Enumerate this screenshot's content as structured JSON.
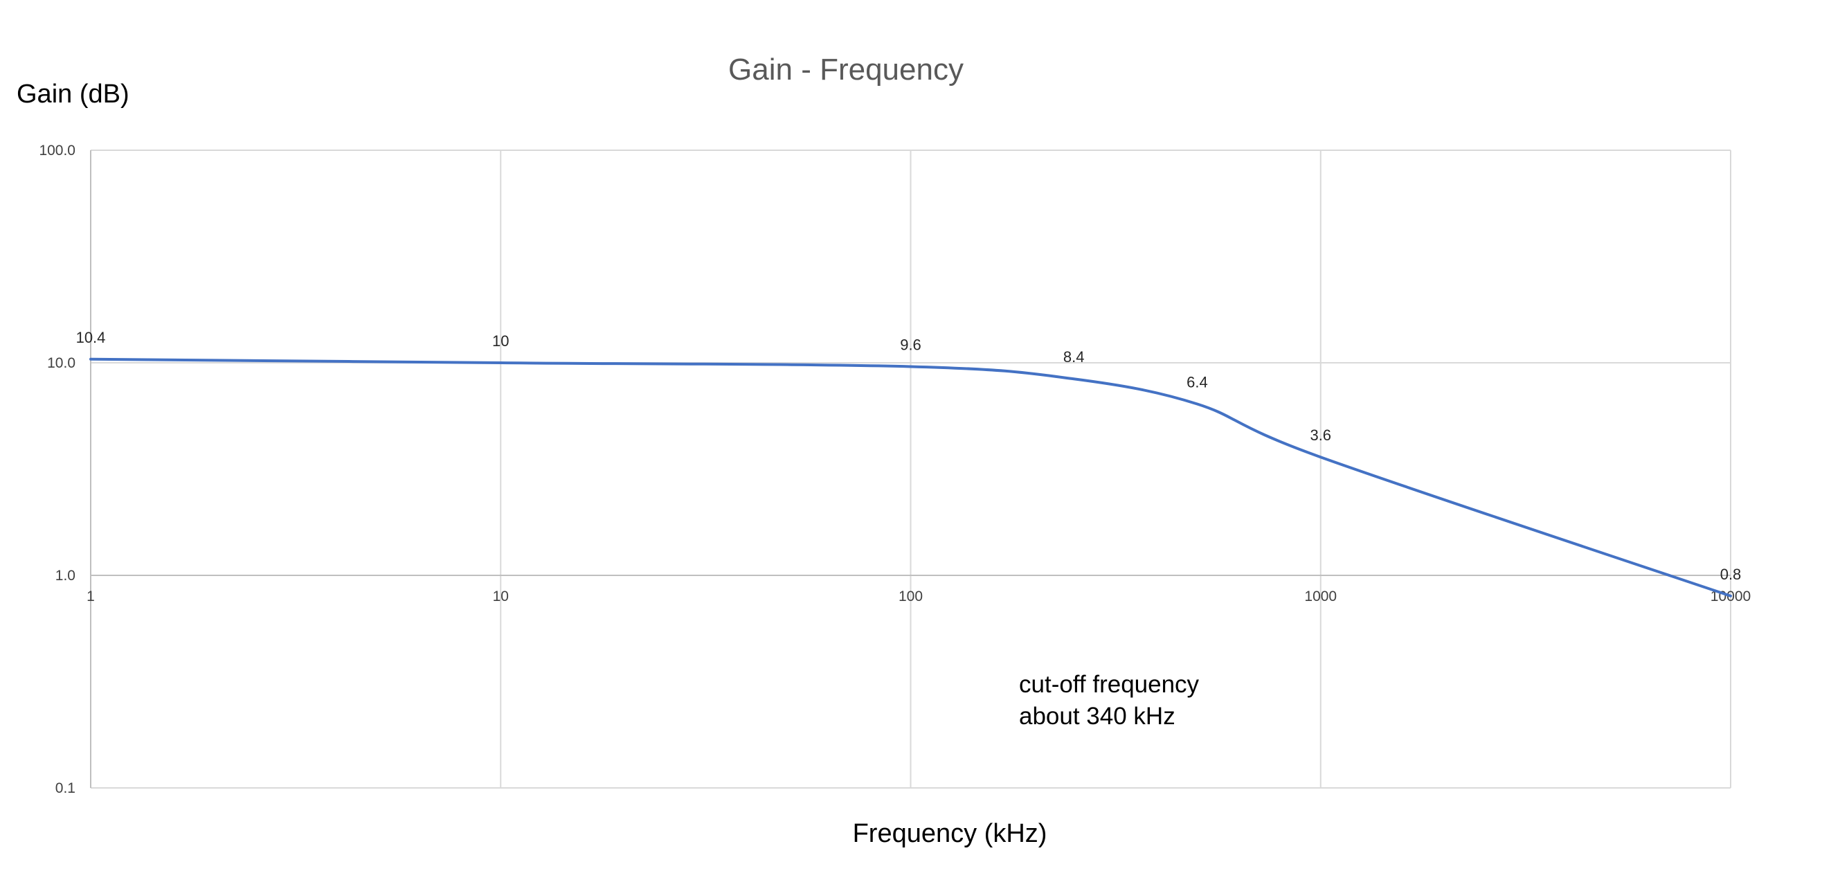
{
  "chart_data": {
    "type": "line",
    "title": "Gain - Frequency",
    "xlabel": "Frequency (kHz)",
    "ylabel": "Gain (dB)",
    "x_scale": "log",
    "y_scale": "log",
    "xlim": [
      1,
      10000
    ],
    "ylim": [
      0.1,
      100
    ],
    "x_ticks": [
      "1",
      "10",
      "100",
      "1000",
      "10000"
    ],
    "y_ticks": [
      "100.0",
      "10.0",
      "1.0",
      "0.1"
    ],
    "grid": true,
    "legend": "none",
    "series": [
      {
        "color": "#4472c4",
        "x": [
          1,
          10,
          100,
          250,
          500,
          1000,
          10000
        ],
        "y": [
          10.4,
          10,
          9.6,
          8.4,
          6.4,
          3.6,
          0.8
        ],
        "labels": [
          "10.4",
          "10",
          "9.6",
          "8.4",
          "6.4",
          "3.6",
          "0.8"
        ]
      }
    ],
    "annotations": [
      "cut-off frequency",
      "about 340 kHz"
    ]
  }
}
